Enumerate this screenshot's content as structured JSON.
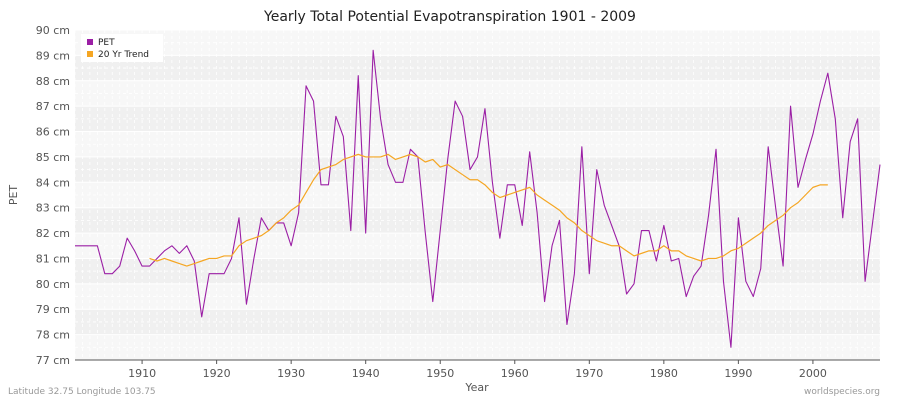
{
  "chart_data": {
    "type": "line",
    "title": "Yearly Total Potential Evapotranspiration 1901 - 2009",
    "xlabel": "Year",
    "ylabel": "PET",
    "xlim": [
      1901,
      2009
    ],
    "ylim": [
      77,
      90
    ],
    "x_ticks": [
      1910,
      1920,
      1930,
      1940,
      1950,
      1960,
      1970,
      1980,
      1990,
      2000
    ],
    "y_ticks": [
      {
        "v": 77,
        "label": "77 cm"
      },
      {
        "v": 78,
        "label": "78 cm"
      },
      {
        "v": 79,
        "label": "79 cm"
      },
      {
        "v": 80,
        "label": "80 cm"
      },
      {
        "v": 81,
        "label": "81 cm"
      },
      {
        "v": 82,
        "label": "82 cm"
      },
      {
        "v": 83,
        "label": "83 cm"
      },
      {
        "v": 84,
        "label": "84 cm"
      },
      {
        "v": 85,
        "label": "85 cm"
      },
      {
        "v": 86,
        "label": "86 cm"
      },
      {
        "v": 87,
        "label": "87 cm"
      },
      {
        "v": 88,
        "label": "88 cm"
      },
      {
        "v": 89,
        "label": "89 cm"
      },
      {
        "v": 90,
        "label": "90 cm"
      }
    ],
    "grid": true,
    "legend_position": "top-left",
    "series": [
      {
        "name": "PET",
        "color": "#9b1fa5",
        "x_start": 1901,
        "values": [
          81.5,
          81.5,
          81.5,
          81.5,
          80.4,
          80.4,
          80.7,
          81.8,
          81.3,
          80.7,
          80.7,
          81.0,
          81.3,
          81.5,
          81.2,
          81.5,
          80.9,
          78.7,
          80.4,
          80.4,
          80.4,
          81.0,
          82.6,
          79.2,
          81.0,
          82.6,
          82.1,
          82.4,
          82.4,
          81.5,
          82.8,
          87.8,
          87.2,
          83.9,
          83.9,
          86.6,
          85.8,
          82.1,
          88.2,
          82.0,
          89.2,
          86.5,
          84.7,
          84.0,
          84.0,
          85.3,
          85.0,
          82.0,
          79.3,
          82.1,
          84.9,
          87.2,
          86.6,
          84.5,
          85.0,
          86.9,
          84.0,
          81.8,
          83.9,
          83.9,
          82.3,
          85.2,
          82.8,
          79.3,
          81.5,
          82.5,
          78.4,
          80.4,
          85.4,
          80.4,
          84.5,
          83.1,
          82.3,
          81.5,
          79.6,
          80.0,
          82.1,
          82.1,
          80.9,
          82.3,
          80.9,
          81.0,
          79.5,
          80.3,
          80.7,
          82.7,
          85.3,
          80.1,
          77.5,
          82.6,
          80.1,
          79.5,
          80.6,
          85.4,
          83.0,
          80.7,
          87.0,
          83.8,
          84.9,
          85.9,
          87.2,
          88.3,
          86.5,
          82.6,
          85.6,
          86.5,
          80.1,
          82.4,
          84.7
        ]
      },
      {
        "name": "20 Yr Trend",
        "color": "#f5a623",
        "x_start": 1911,
        "values": [
          81.0,
          80.9,
          81.0,
          80.9,
          80.8,
          80.7,
          80.8,
          80.9,
          81.0,
          81.0,
          81.1,
          81.1,
          81.5,
          81.7,
          81.8,
          81.9,
          82.1,
          82.4,
          82.6,
          82.9,
          83.1,
          83.6,
          84.1,
          84.5,
          84.6,
          84.7,
          84.9,
          85.0,
          85.1,
          85.0,
          85.0,
          85.0,
          85.1,
          84.9,
          85.0,
          85.1,
          85.0,
          84.8,
          84.9,
          84.6,
          84.7,
          84.5,
          84.3,
          84.1,
          84.1,
          83.9,
          83.6,
          83.4,
          83.5,
          83.6,
          83.7,
          83.8,
          83.5,
          83.3,
          83.1,
          82.9,
          82.6,
          82.4,
          82.1,
          81.9,
          81.7,
          81.6,
          81.5,
          81.5,
          81.3,
          81.1,
          81.2,
          81.3,
          81.3,
          81.5,
          81.3,
          81.3,
          81.1,
          81.0,
          80.9,
          81.0,
          81.0,
          81.1,
          81.3,
          81.4,
          81.6,
          81.8,
          82.0,
          82.3,
          82.5,
          82.7,
          83.0,
          83.2,
          83.5,
          83.8,
          83.9,
          83.9
        ]
      }
    ]
  },
  "footer": {
    "location": "Latitude 32.75 Longitude 103.75",
    "source": "worldspecies.org"
  }
}
